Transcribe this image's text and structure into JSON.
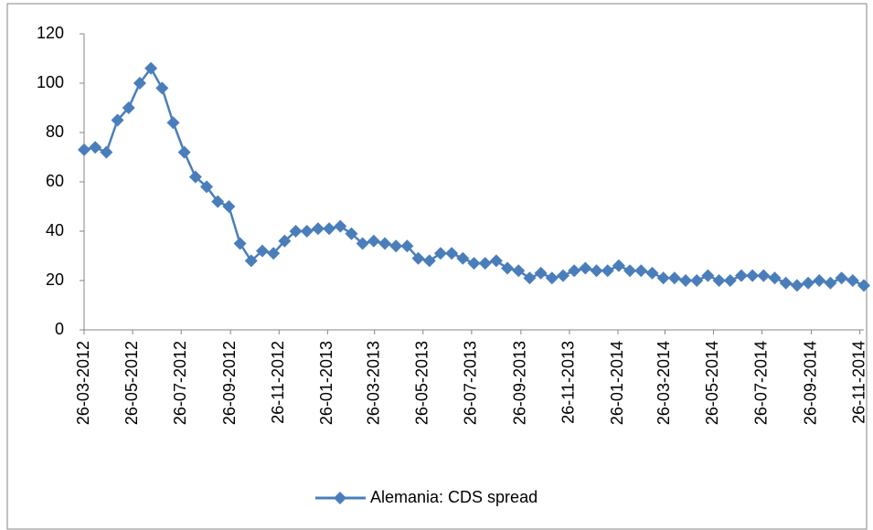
{
  "chart_data": {
    "type": "line",
    "x": [
      "26-03-2012",
      "09-04-2012",
      "23-04-2012",
      "07-05-2012",
      "21-05-2012",
      "04-06-2012",
      "18-06-2012",
      "02-07-2012",
      "16-07-2012",
      "30-07-2012",
      "13-08-2012",
      "27-08-2012",
      "10-09-2012",
      "24-09-2012",
      "08-10-2012",
      "22-10-2012",
      "05-11-2012",
      "19-11-2012",
      "03-12-2012",
      "17-12-2012",
      "31-12-2012",
      "14-01-2013",
      "28-01-2013",
      "11-02-2013",
      "25-02-2013",
      "11-03-2013",
      "25-03-2013",
      "08-04-2013",
      "22-04-2013",
      "06-05-2013",
      "20-05-2013",
      "03-06-2013",
      "17-06-2013",
      "01-07-2013",
      "15-07-2013",
      "29-07-2013",
      "12-08-2013",
      "26-08-2013",
      "09-09-2013",
      "23-09-2013",
      "07-10-2013",
      "21-10-2013",
      "04-11-2013",
      "18-11-2013",
      "02-12-2013",
      "16-12-2013",
      "30-12-2013",
      "13-01-2014",
      "27-01-2014",
      "10-02-2014",
      "24-02-2014",
      "10-03-2014",
      "24-03-2014",
      "07-04-2014",
      "21-04-2014",
      "05-05-2014",
      "19-05-2014",
      "02-06-2014",
      "16-06-2014",
      "30-06-2014",
      "14-07-2014",
      "28-07-2014",
      "11-08-2014",
      "25-08-2014",
      "08-09-2014",
      "22-09-2014",
      "06-10-2014",
      "20-10-2014",
      "03-11-2014",
      "17-11-2014",
      "01-12-2014"
    ],
    "series": [
      {
        "name": "Alemania: CDS spread",
        "color": "#4a7ebb",
        "values": [
          73,
          74,
          72,
          85,
          90,
          100,
          106,
          98,
          84,
          72,
          62,
          58,
          52,
          50,
          35,
          28,
          32,
          31,
          36,
          40,
          40,
          41,
          41,
          42,
          39,
          35,
          36,
          35,
          34,
          34,
          29,
          28,
          31,
          31,
          29,
          27,
          27,
          28,
          25,
          24,
          21,
          23,
          21,
          22,
          24,
          25,
          24,
          24,
          26,
          24,
          24,
          23,
          21,
          21,
          20,
          20,
          22,
          20,
          20,
          22,
          22,
          22,
          21,
          19,
          18,
          19,
          20,
          19,
          21,
          20,
          18
        ]
      }
    ],
    "xlim": [
      "26-03-2012",
      "01-12-2014"
    ],
    "xticks": [
      "26-03-2012",
      "26-05-2012",
      "26-07-2012",
      "26-09-2012",
      "26-11-2012",
      "26-01-2013",
      "26-03-2013",
      "26-05-2013",
      "26-07-2013",
      "26-09-2013",
      "26-11-2013",
      "26-01-2014",
      "26-03-2014",
      "26-05-2014",
      "26-07-2014",
      "26-09-2014",
      "26-11-2014"
    ],
    "ylim": [
      0,
      120
    ],
    "yticks": [
      0,
      20,
      40,
      60,
      80,
      100,
      120
    ],
    "grid": false,
    "legend": "bottom"
  }
}
